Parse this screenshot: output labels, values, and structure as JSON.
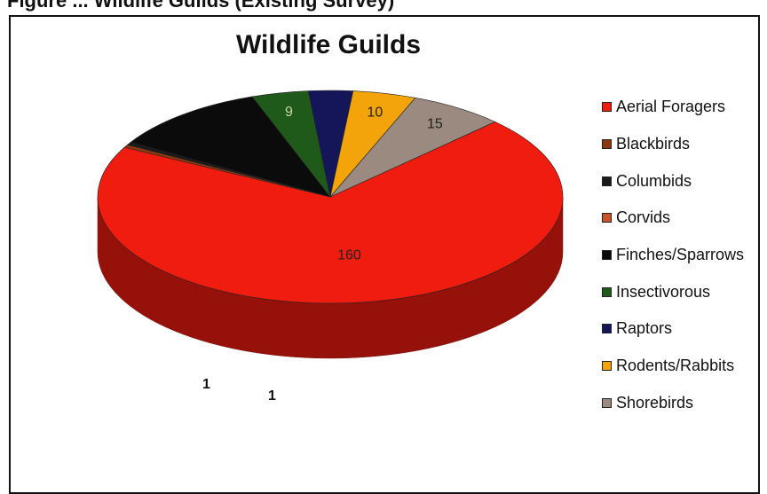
{
  "page": {
    "caption_fragment": "Figure ... Wildlife Guilds (Existing Survey)"
  },
  "chart_data": {
    "type": "pie",
    "title": "Wildlife Guilds",
    "categories": [
      "Aerial Foragers",
      "Blackbirds",
      "Columbids",
      "Corvids",
      "Finches/Sparrows",
      "Insectivorous",
      "Raptors",
      "Rodents/Rabbits",
      "Shorebirds"
    ],
    "values": [
      160,
      1,
      1,
      0,
      25,
      9,
      7,
      10,
      15
    ],
    "data_labels": [
      "160",
      "1",
      "1",
      "",
      "",
      "9",
      "",
      "10",
      "15"
    ],
    "colors": [
      "#f01c10",
      "#8b3a10",
      "#1a1a1a",
      "#c8532a",
      "#0b0b0b",
      "#1f5a1a",
      "#15155a",
      "#f2a40a",
      "#9a8a80"
    ],
    "legend_position": "right"
  }
}
